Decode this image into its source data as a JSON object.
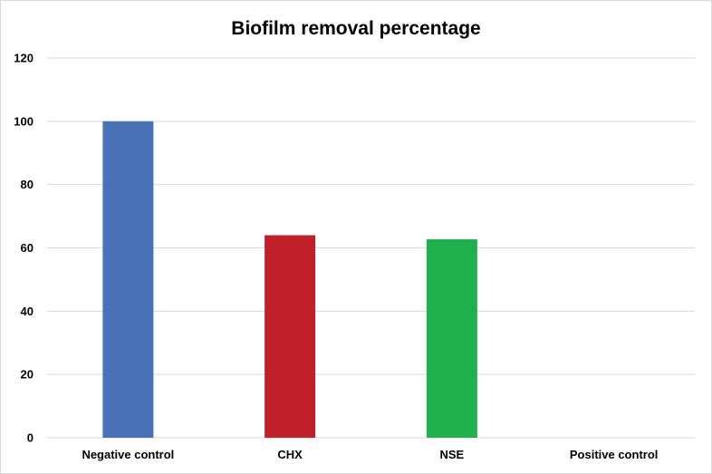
{
  "chart_data": {
    "type": "bar",
    "title": "Biofilm removal percentage",
    "xlabel": "",
    "ylabel": "",
    "categories": [
      "Negative control",
      "CHX",
      "NSE",
      "Positive control"
    ],
    "values": [
      100,
      64,
      62.7,
      0
    ],
    "colors": [
      "#4a72b8",
      "#c0202a",
      "#20b04e",
      "#808080"
    ],
    "ylim": [
      0,
      120
    ],
    "yticks": [
      0,
      20,
      40,
      60,
      80,
      100,
      120
    ],
    "grid": true,
    "legend": "none"
  }
}
